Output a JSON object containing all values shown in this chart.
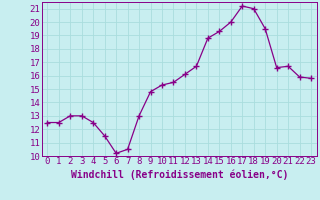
{
  "x": [
    0,
    1,
    2,
    3,
    4,
    5,
    6,
    7,
    8,
    9,
    10,
    11,
    12,
    13,
    14,
    15,
    16,
    17,
    18,
    19,
    20,
    21,
    22,
    23
  ],
  "y": [
    12.5,
    12.5,
    13.0,
    13.0,
    12.5,
    11.5,
    10.2,
    10.5,
    13.0,
    14.8,
    15.3,
    15.5,
    16.1,
    16.7,
    18.8,
    19.3,
    20.0,
    21.2,
    21.0,
    19.5,
    16.6,
    16.7,
    15.9,
    15.8
  ],
  "xlim": [
    -0.5,
    23.5
  ],
  "ylim": [
    10,
    21.5
  ],
  "yticks": [
    10,
    11,
    12,
    13,
    14,
    15,
    16,
    17,
    18,
    19,
    20,
    21
  ],
  "xticks": [
    0,
    1,
    2,
    3,
    4,
    5,
    6,
    7,
    8,
    9,
    10,
    11,
    12,
    13,
    14,
    15,
    16,
    17,
    18,
    19,
    20,
    21,
    22,
    23
  ],
  "xlabel": "Windchill (Refroidissement éolien,°C)",
  "line_color": "#880088",
  "marker": "+",
  "bg_color": "#c8eef0",
  "grid_color": "#aadddd",
  "tick_fontsize": 6.5,
  "xlabel_fontsize": 7.0
}
